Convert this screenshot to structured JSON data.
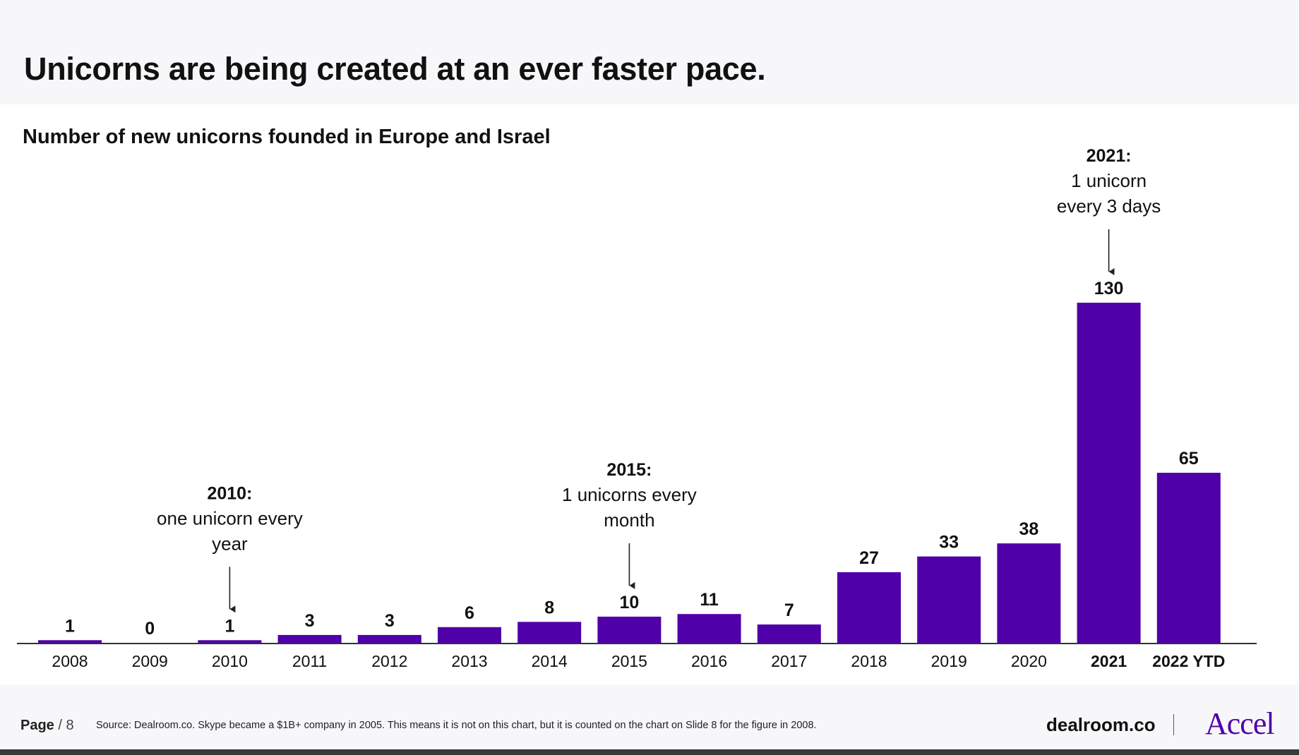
{
  "slide": {
    "title": "Unicorns are being created at an ever faster pace.",
    "subtitle": "Number of new unicorns founded in Europe and Israel"
  },
  "colors": {
    "bar": "#4f00a8",
    "axis": "#333333",
    "title_band": "#f7f7fa",
    "accel_brand": "#4f00a8"
  },
  "chart_data": {
    "type": "bar",
    "title": "Number of new unicorns founded in Europe and Israel",
    "xlabel": "",
    "ylabel": "",
    "categories": [
      "2008",
      "2009",
      "2010",
      "2011",
      "2012",
      "2013",
      "2014",
      "2015",
      "2016",
      "2017",
      "2018",
      "2019",
      "2020",
      "2021",
      "2022 YTD"
    ],
    "values": [
      1,
      0,
      1,
      3,
      3,
      6,
      8,
      10,
      11,
      7,
      27,
      33,
      38,
      130,
      65
    ],
    "ylim": [
      0,
      130
    ],
    "grid": false,
    "legend": "none",
    "bold_categories": [
      "2021",
      "2022 YTD"
    ],
    "annotations": [
      {
        "category": "2010",
        "heading": "2010:",
        "lines": [
          "one unicorn every",
          "year"
        ]
      },
      {
        "category": "2015",
        "heading": "2015:",
        "lines": [
          "1 unicorns every",
          "month"
        ]
      },
      {
        "category": "2021",
        "heading": "2021:",
        "lines": [
          "1 unicorn",
          "every 3 days"
        ]
      }
    ]
  },
  "footer": {
    "page_label": "Page",
    "page_value": "/ 8",
    "source": "Source: Dealroom.co. Skype became a $1B+ company  in 2005. This means it is not on this chart, but it is counted on the chart on Slide 8 for the figure in 2008.",
    "brand_dealroom": "dealroom.co",
    "brand_accel": "Accel"
  }
}
